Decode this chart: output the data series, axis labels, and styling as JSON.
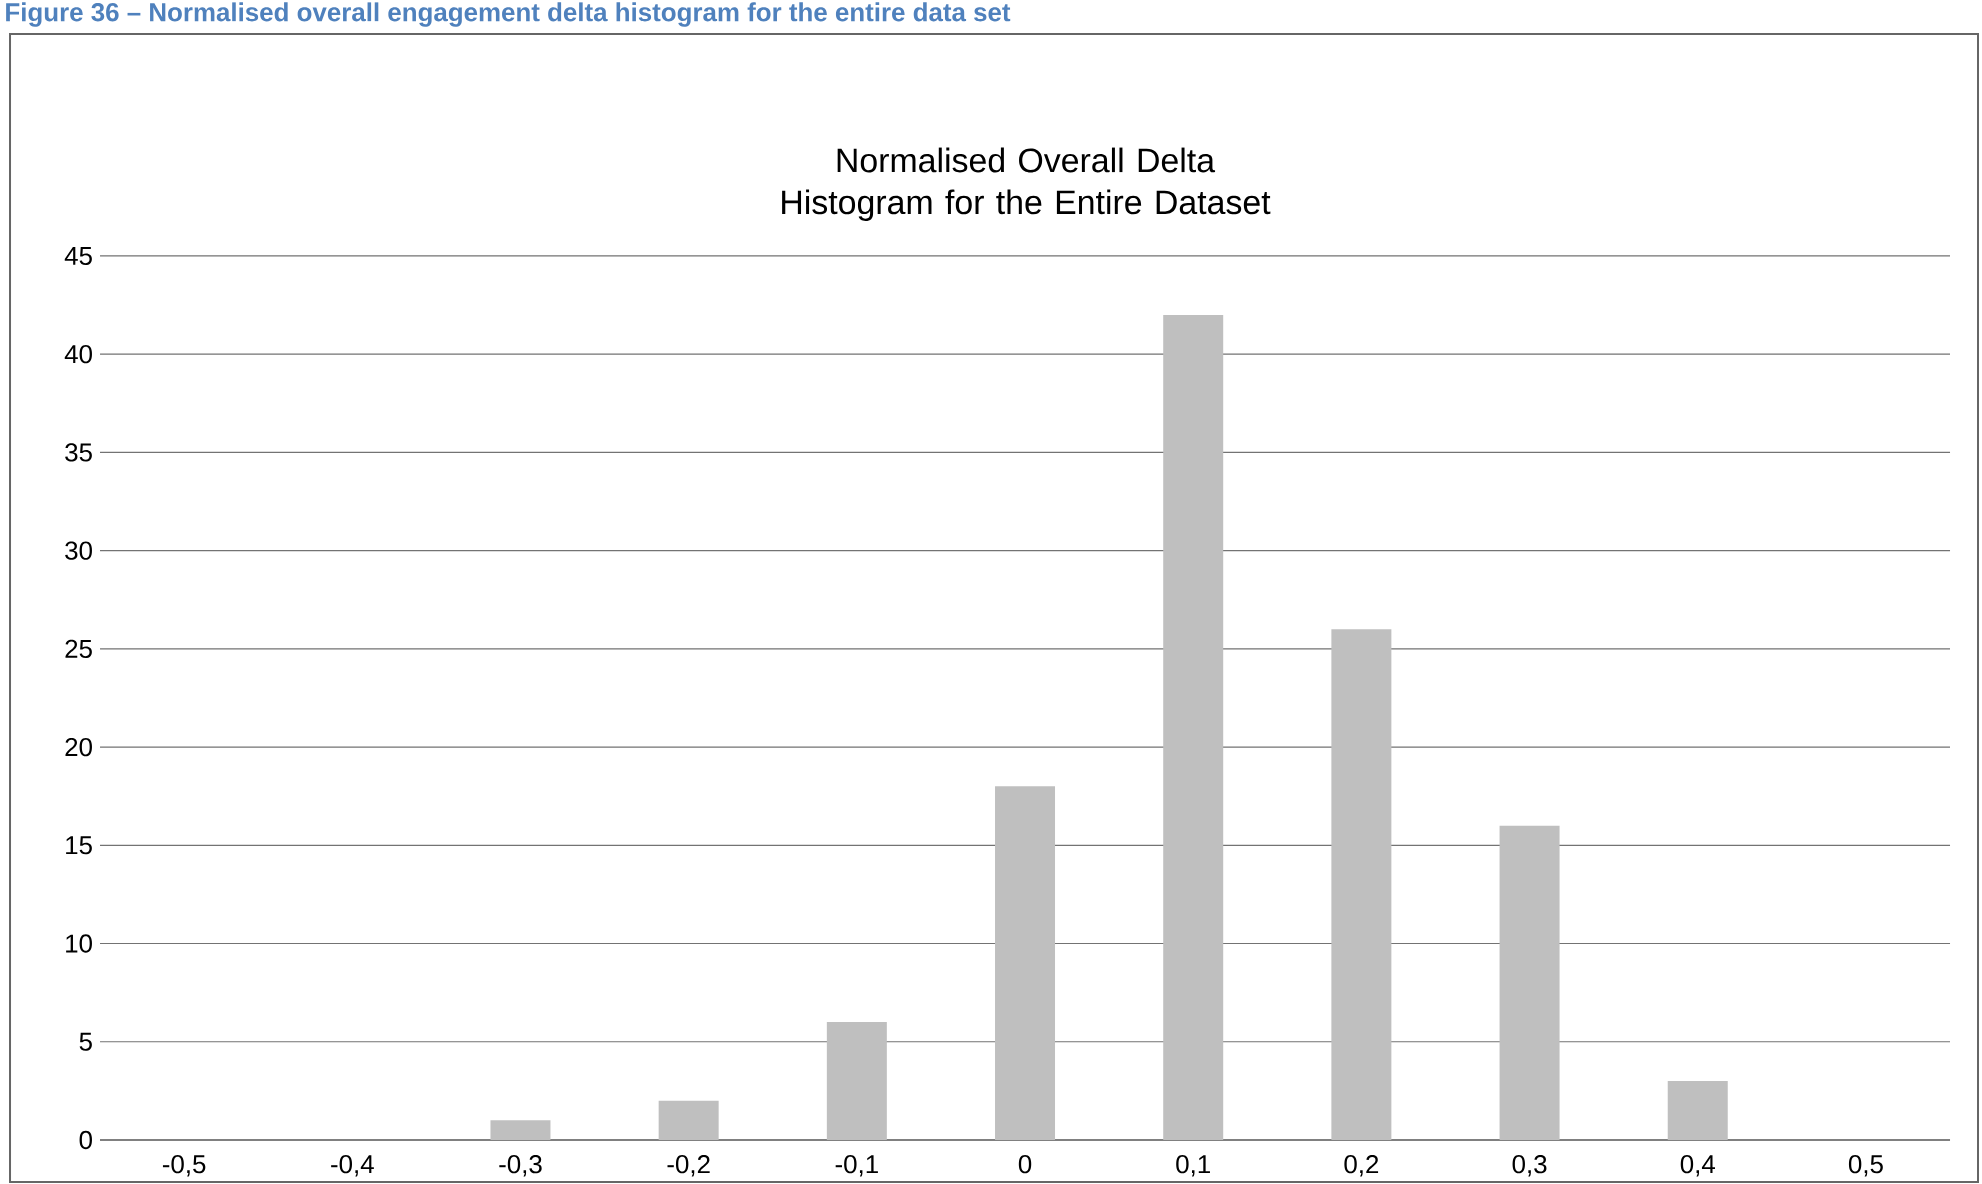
{
  "chart_data": {
    "type": "bar",
    "title": "Normalised Overall Delta Histogram for the Entire Dataset",
    "categories": [
      "-0,5",
      "-0,4",
      "-0,3",
      "-0,2",
      "-0,1",
      "0",
      "0,1",
      "0,2",
      "0,3",
      "0,4",
      "0,5"
    ],
    "values": [
      0,
      0,
      1,
      2,
      6,
      18,
      42,
      26,
      16,
      3,
      0
    ],
    "color": "#bfbfbf",
    "ylim": [
      0,
      45
    ],
    "yticks": [
      0,
      5,
      10,
      15,
      20,
      25,
      30,
      35,
      40,
      45
    ],
    "grid": "y",
    "annotations": [
      "Figure 36 – Normalised overall engagement delta histogram for the entire data set"
    ]
  }
}
